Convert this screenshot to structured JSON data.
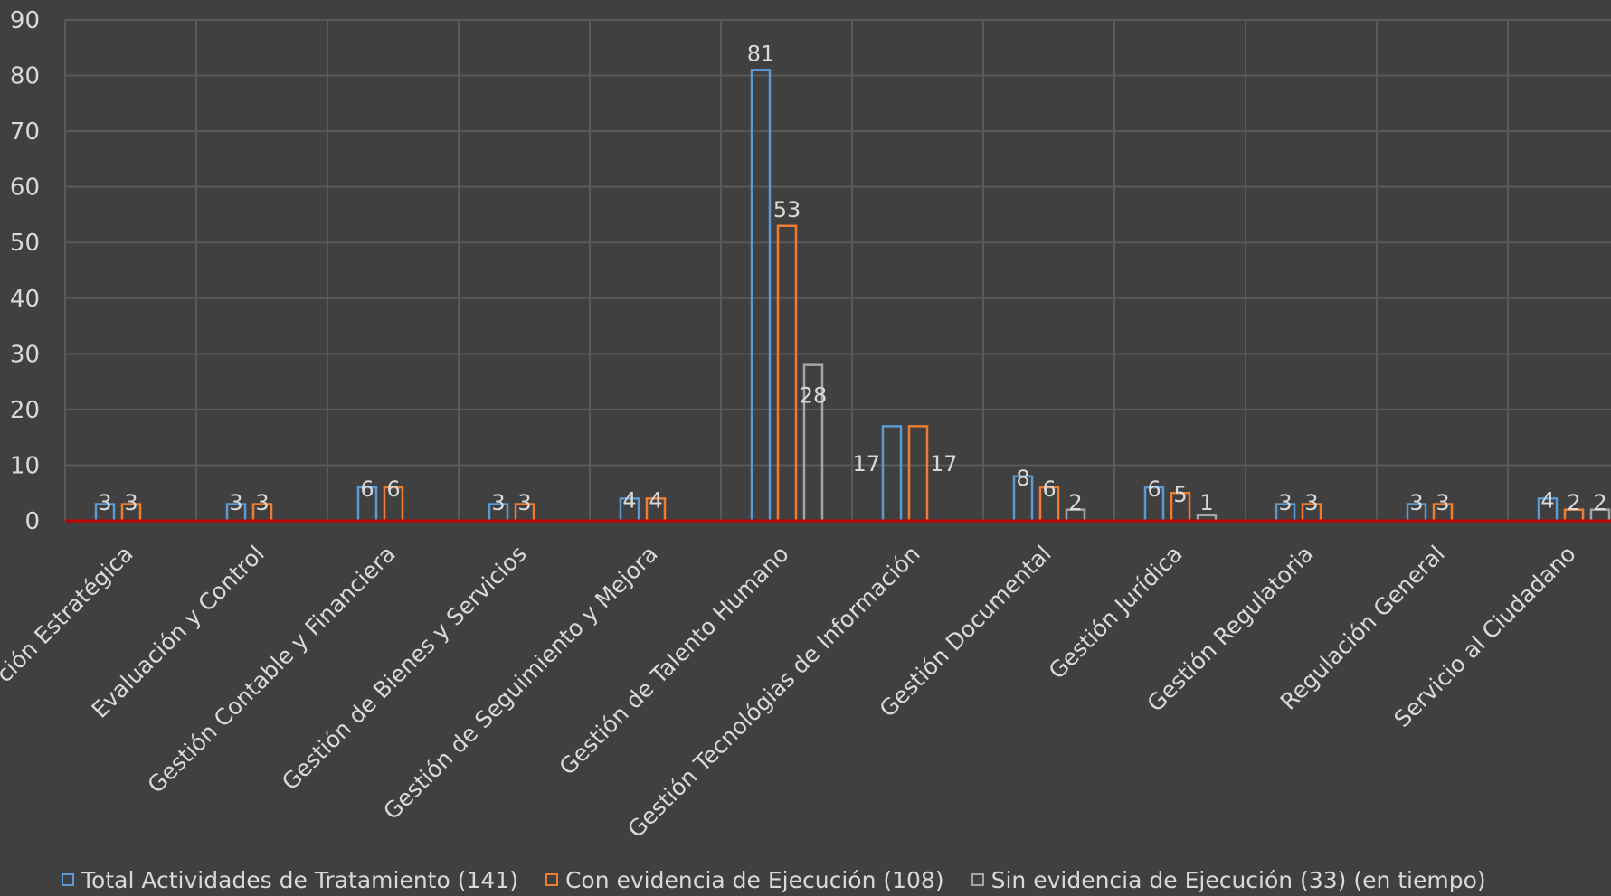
{
  "chart_data": {
    "type": "bar",
    "title": "",
    "xlabel": "",
    "ylabel": "",
    "ylim": [
      0,
      90
    ],
    "yticks": [
      0,
      10,
      20,
      30,
      40,
      50,
      60,
      70,
      80,
      90
    ],
    "grid": true,
    "legend_position": "bottom",
    "categories": [
      "ción Estratégica",
      "Evaluación y Control",
      "Gestión Contable y Financiera",
      "Gestión de Bienes y Servicios",
      "Gestión de Seguimiento y Mejora",
      "Gestión de Talento Humano",
      "Gestión Tecnológias de Información",
      "Gestión Documental",
      "Gestión Jurídica",
      "Gestión Regulatoria",
      "Regulación General",
      "Servicio al Ciudadano"
    ],
    "series": [
      {
        "name": "Total Actividades de Tratamiento (141)",
        "color": "#5b9bd5",
        "values": [
          3,
          3,
          6,
          3,
          4,
          81,
          17,
          8,
          6,
          3,
          3,
          4
        ]
      },
      {
        "name": "Con evidencia de Ejecución (108)",
        "color": "#ed7d31",
        "values": [
          3,
          3,
          6,
          3,
          4,
          53,
          17,
          6,
          5,
          3,
          3,
          2
        ]
      },
      {
        "name": "Sin evidencia de Ejecución (33) (en tiempo)",
        "color": "#a5a5a5",
        "values": [
          null,
          null,
          null,
          null,
          null,
          28,
          null,
          2,
          1,
          null,
          null,
          2
        ]
      }
    ]
  }
}
